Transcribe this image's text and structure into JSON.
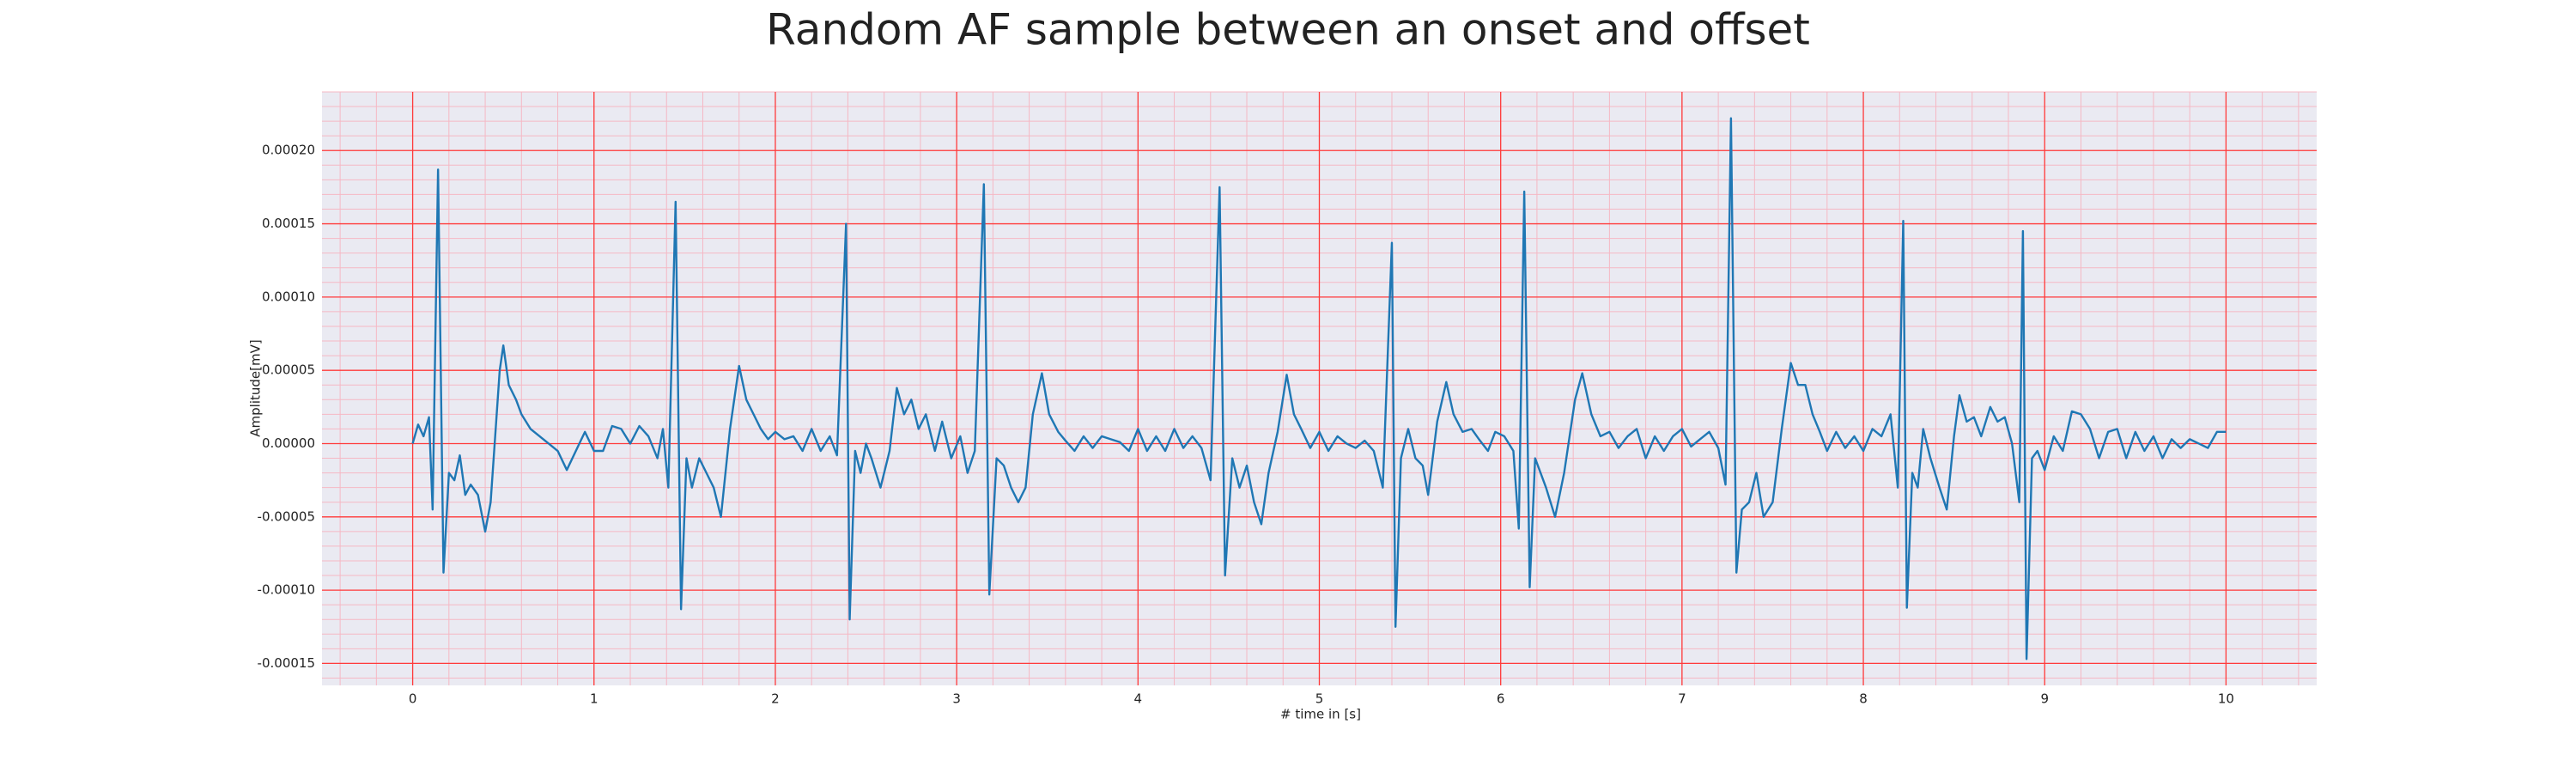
{
  "chart_data": {
    "type": "line",
    "title": "Random AF sample between an onset and offset",
    "xlabel": "# time in [s]",
    "ylabel": "Amplitude[mV]",
    "color": "#1f77b4",
    "grid": true,
    "grid_color": "#ff3b3b",
    "minor_grid": {
      "x_step": 0.2,
      "y_step": 1e-05,
      "color": "#f5b8c4"
    },
    "background": "#eaeaf2",
    "xlim": [
      -0.5,
      10.5
    ],
    "ylim": [
      -0.000165,
      0.00024
    ],
    "xticks": [
      0,
      1,
      2,
      3,
      4,
      5,
      6,
      7,
      8,
      9,
      10
    ],
    "yticks": [
      {
        "value": -0.00015,
        "label": "-0.00015"
      },
      {
        "value": -0.0001,
        "label": "-0.00010"
      },
      {
        "value": -5e-05,
        "label": "-0.00005"
      },
      {
        "value": 0,
        "label": "0.00000"
      },
      {
        "value": 5e-05,
        "label": "0.00005"
      },
      {
        "value": 0.0001,
        "label": "0.00010"
      },
      {
        "value": 0.00015,
        "label": "0.00015"
      },
      {
        "value": 0.0002,
        "label": "0.00020"
      }
    ],
    "x": [
      0,
      0.03,
      0.06,
      0.09,
      0.11,
      0.14,
      0.17,
      0.2,
      0.23,
      0.26,
      0.29,
      0.32,
      0.36,
      0.4,
      0.43,
      0.48,
      0.5,
      0.53,
      0.57,
      0.6,
      0.65,
      0.7,
      0.75,
      0.8,
      0.85,
      0.9,
      0.95,
      1.0,
      1.05,
      1.1,
      1.15,
      1.2,
      1.25,
      1.3,
      1.35,
      1.38,
      1.41,
      1.45,
      1.48,
      1.51,
      1.54,
      1.58,
      1.62,
      1.66,
      1.7,
      1.75,
      1.8,
      1.84,
      1.88,
      1.92,
      1.96,
      2.0,
      2.05,
      2.1,
      2.15,
      2.2,
      2.25,
      2.3,
      2.34,
      2.39,
      2.41,
      2.44,
      2.47,
      2.5,
      2.53,
      2.58,
      2.63,
      2.67,
      2.71,
      2.75,
      2.79,
      2.83,
      2.88,
      2.92,
      2.97,
      3.02,
      3.06,
      3.1,
      3.15,
      3.18,
      3.22,
      3.26,
      3.3,
      3.34,
      3.38,
      3.42,
      3.47,
      3.51,
      3.56,
      3.6,
      3.65,
      3.7,
      3.75,
      3.8,
      3.85,
      3.9,
      3.95,
      4.0,
      4.05,
      4.1,
      4.15,
      4.2,
      4.25,
      4.3,
      4.35,
      4.4,
      4.45,
      4.48,
      4.52,
      4.56,
      4.6,
      4.64,
      4.68,
      4.72,
      4.77,
      4.82,
      4.86,
      4.9,
      4.95,
      5.0,
      5.05,
      5.1,
      5.15,
      5.2,
      5.25,
      5.3,
      5.35,
      5.4,
      5.42,
      5.45,
      5.49,
      5.53,
      5.57,
      5.6,
      5.65,
      5.7,
      5.74,
      5.79,
      5.84,
      5.88,
      5.93,
      5.97,
      6.02,
      6.07,
      6.1,
      6.13,
      6.16,
      6.19,
      6.22,
      6.25,
      6.3,
      6.35,
      6.41,
      6.45,
      6.5,
      6.55,
      6.6,
      6.65,
      6.7,
      6.75,
      6.8,
      6.85,
      6.9,
      6.95,
      7.0,
      7.05,
      7.1,
      7.15,
      7.2,
      7.24,
      7.27,
      7.3,
      7.33,
      7.37,
      7.41,
      7.45,
      7.5,
      7.55,
      7.6,
      7.64,
      7.68,
      7.72,
      7.76,
      7.8,
      7.85,
      7.9,
      7.95,
      8.0,
      8.05,
      8.1,
      8.15,
      8.19,
      8.22,
      8.24,
      8.27,
      8.3,
      8.33,
      8.37,
      8.42,
      8.46,
      8.5,
      8.53,
      8.57,
      8.61,
      8.65,
      8.7,
      8.74,
      8.78,
      8.82,
      8.86,
      8.88,
      8.9,
      8.93,
      8.96,
      9.0,
      9.05,
      9.1,
      9.15,
      9.2,
      9.25,
      9.3,
      9.35,
      9.4,
      9.45,
      9.5,
      9.55,
      9.6,
      9.65,
      9.7,
      9.75,
      9.8,
      9.85,
      9.9,
      9.95,
      10.0
    ],
    "values": [
      0,
      1.3e-05,
      5e-06,
      1.8e-05,
      -4.5e-05,
      0.000187,
      -8.8e-05,
      -2e-05,
      -2.5e-05,
      -8e-06,
      -3.5e-05,
      -2.8e-05,
      -3.5e-05,
      -6e-05,
      -4e-05,
      5e-05,
      6.7e-05,
      4e-05,
      3e-05,
      2e-05,
      1e-05,
      5e-06,
      0,
      -5e-06,
      -1.8e-05,
      -5e-06,
      8e-06,
      -5e-06,
      -5e-06,
      1.2e-05,
      1e-05,
      0,
      1.2e-05,
      5e-06,
      -1e-05,
      1e-05,
      -3e-05,
      0.000165,
      -0.000113,
      -1e-05,
      -3e-05,
      -1e-05,
      -2e-05,
      -3e-05,
      -5e-05,
      1e-05,
      5.3e-05,
      3e-05,
      2e-05,
      1e-05,
      3e-06,
      8e-06,
      3e-06,
      5e-06,
      -5e-06,
      1e-05,
      -5e-06,
      5e-06,
      -8e-06,
      0.00015,
      -0.00012,
      -5e-06,
      -2e-05,
      0,
      -1e-05,
      -3e-05,
      -5e-06,
      3.8e-05,
      2e-05,
      3e-05,
      1e-05,
      2e-05,
      -5e-06,
      1.5e-05,
      -1e-05,
      5e-06,
      -2e-05,
      -5e-06,
      0.000177,
      -0.000103,
      -1e-05,
      -1.5e-05,
      -3e-05,
      -4e-05,
      -3e-05,
      2e-05,
      4.8e-05,
      2e-05,
      8e-06,
      2e-06,
      -5e-06,
      5e-06,
      -3e-06,
      5e-06,
      3e-06,
      1e-06,
      -5e-06,
      1e-05,
      -5e-06,
      5e-06,
      -5e-06,
      1e-05,
      -3e-06,
      5e-06,
      -3e-06,
      -2.5e-05,
      0.000175,
      -9e-05,
      -1e-05,
      -3e-05,
      -1.5e-05,
      -4e-05,
      -5.5e-05,
      -2e-05,
      8e-06,
      4.7e-05,
      2e-05,
      1e-05,
      -3e-06,
      8e-06,
      -5e-06,
      5e-06,
      0,
      -3e-06,
      2e-06,
      -5e-06,
      -3e-05,
      0.000137,
      -0.000125,
      -1e-05,
      1e-05,
      -1e-05,
      -1.5e-05,
      -3.5e-05,
      1.5e-05,
      4.2e-05,
      2e-05,
      8e-06,
      1e-05,
      3e-06,
      -5e-06,
      8e-06,
      5e-06,
      -5e-06,
      -5.8e-05,
      0.000172,
      -9.8e-05,
      -1e-05,
      -2e-05,
      -3e-05,
      -5e-05,
      -2e-05,
      3e-05,
      4.8e-05,
      2e-05,
      5e-06,
      8e-06,
      -3e-06,
      5e-06,
      1e-05,
      -1e-05,
      5e-06,
      -5e-06,
      5e-06,
      1e-05,
      -2e-06,
      3e-06,
      8e-06,
      -3e-06,
      -2.8e-05,
      0.000222,
      -8.8e-05,
      -4.5e-05,
      -4e-05,
      -2e-05,
      -5e-05,
      -4e-05,
      1e-05,
      5.5e-05,
      4e-05,
      4e-05,
      2e-05,
      8e-06,
      -5e-06,
      8e-06,
      -3e-06,
      5e-06,
      -5e-06,
      1e-05,
      5e-06,
      2e-05,
      -3e-05,
      0.000152,
      -0.000112,
      -2e-05,
      -3e-05,
      1e-05,
      -1e-05,
      -3e-05,
      -4.5e-05,
      5e-06,
      3.3e-05,
      1.5e-05,
      1.8e-05,
      5e-06,
      2.5e-05,
      1.5e-05,
      1.8e-05,
      0,
      -4e-05,
      0.000145,
      -0.000147,
      -1e-05,
      -5e-06,
      -1.8e-05,
      5e-06,
      -5e-06,
      2.2e-05,
      2e-05,
      1e-05,
      -1e-05,
      8e-06,
      1e-05,
      -1e-05,
      8e-06,
      -5e-06,
      5e-06,
      -1e-05,
      3e-06,
      -3e-06,
      3e-06,
      0,
      -3e-06,
      8e-06,
      8e-06
    ]
  }
}
